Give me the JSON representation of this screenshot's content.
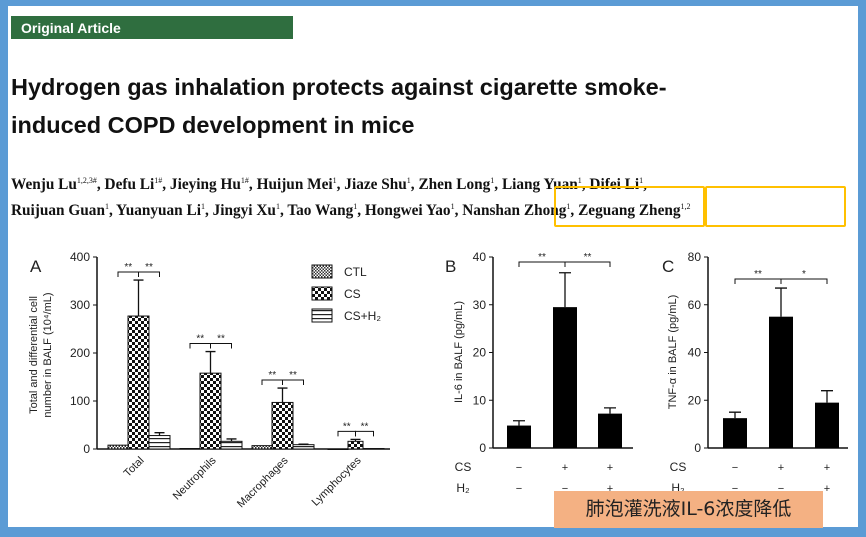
{
  "banner": "Original Article",
  "title_line1": "Hydrogen gas inhalation protects against cigarette smoke-",
  "title_line2": "induced COPD development in mice",
  "authors_line1": [
    {
      "name": "Wenju Lu",
      "sup": "1,2,3#"
    },
    {
      "name": "Defu Li",
      "sup": "1#"
    },
    {
      "name": "Jieying Hu",
      "sup": "1#"
    },
    {
      "name": "Huijun Mei",
      "sup": "1"
    },
    {
      "name": "Jiaze Shu",
      "sup": "1"
    },
    {
      "name": "Zhen Long",
      "sup": "1"
    },
    {
      "name": "Liang Yuan",
      "sup": "1"
    },
    {
      "name": "Difei Li",
      "sup": "1"
    }
  ],
  "authors_line2": [
    {
      "name": "Ruijuan Guan",
      "sup": "1"
    },
    {
      "name": "Yuanyuan Li",
      "sup": "1"
    },
    {
      "name": "Jingyi Xu",
      "sup": "1"
    },
    {
      "name": "Tao Wang",
      "sup": "1"
    },
    {
      "name": "Hongwei Yao",
      "sup": "1"
    },
    {
      "name": "Nanshan Zhong",
      "sup": "1"
    },
    {
      "name": "Zeguang Zheng",
      "sup": "1,2"
    }
  ],
  "highlight_color": "#ffc000",
  "annotation": "肺泡灌洗液IL-6浓度降低",
  "chart_data": [
    {
      "panel": "A",
      "type": "bar",
      "ylabel_line1": "Total and differential cell",
      "ylabel_line2": "number in BALF (10⁴/mL)",
      "ylim": [
        0,
        400
      ],
      "yticks": [
        "0",
        "100",
        "200",
        "300",
        "400"
      ],
      "categories": [
        "Total",
        "Neutrophils",
        "Macrophages",
        "Lymphocytes"
      ],
      "legend": [
        "CTL",
        "CS",
        "CS+H₂"
      ],
      "legend_position": "top-right",
      "series": [
        {
          "name": "CTL",
          "values": [
            8,
            1,
            7,
            0
          ],
          "errors": [
            0,
            0,
            0,
            0
          ]
        },
        {
          "name": "CS",
          "values": [
            277,
            158,
            97,
            16
          ],
          "errors": [
            75,
            45,
            30,
            4
          ]
        },
        {
          "name": "CS+H2",
          "values": [
            28,
            16,
            9,
            1
          ],
          "errors": [
            6,
            5,
            1,
            0
          ]
        }
      ],
      "significance": [
        [
          "**",
          "**"
        ],
        [
          "**",
          "**"
        ],
        [
          "**",
          "**"
        ],
        [
          "**",
          "**"
        ]
      ]
    },
    {
      "panel": "B",
      "type": "bar",
      "ylabel": "IL-6 in BALF (pg/mL)",
      "ylim": [
        0,
        40
      ],
      "yticks": [
        "0",
        "10",
        "20",
        "30",
        "40"
      ],
      "values": [
        4.7,
        29.5,
        7.2
      ],
      "errors": [
        1.0,
        7.2,
        1.2
      ],
      "row_labels": [
        "CS",
        "H₂"
      ],
      "cs": [
        "−",
        "+",
        "+"
      ],
      "h2": [
        "−",
        "−",
        "+"
      ],
      "significance": [
        "**",
        "**"
      ]
    },
    {
      "panel": "C",
      "type": "bar",
      "ylabel": "TNF-α in BALF (pg/mL)",
      "ylim": [
        0,
        80
      ],
      "yticks": [
        "0",
        "20",
        "40",
        "60",
        "80"
      ],
      "values": [
        12.5,
        55,
        19
      ],
      "errors": [
        2.5,
        12,
        5
      ],
      "row_labels": [
        "CS",
        "H₂"
      ],
      "cs": [
        "−",
        "+",
        "+"
      ],
      "h2": [
        "−",
        "−",
        "+"
      ],
      "significance": [
        "**",
        "*"
      ]
    }
  ]
}
